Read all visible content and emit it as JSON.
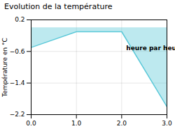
{
  "chart_data": {
    "type": "area",
    "title": "Evolution de la température",
    "ylabel": "Température en °C",
    "x": [
      0,
      1,
      2,
      3
    ],
    "values": [
      -0.5,
      -0.1,
      -0.1,
      -2.0
    ],
    "xlim": [
      0,
      3
    ],
    "ylim": [
      -2.2,
      0.2
    ],
    "xticks": [
      0,
      1,
      2,
      3
    ],
    "yticks": [
      0.2,
      -0.6,
      -1.4,
      -2.2
    ],
    "color": "#5ac8d8",
    "grid": true,
    "annotations": [
      {
        "text": "heure par heure",
        "x": 2.1,
        "y": -0.45
      }
    ]
  }
}
